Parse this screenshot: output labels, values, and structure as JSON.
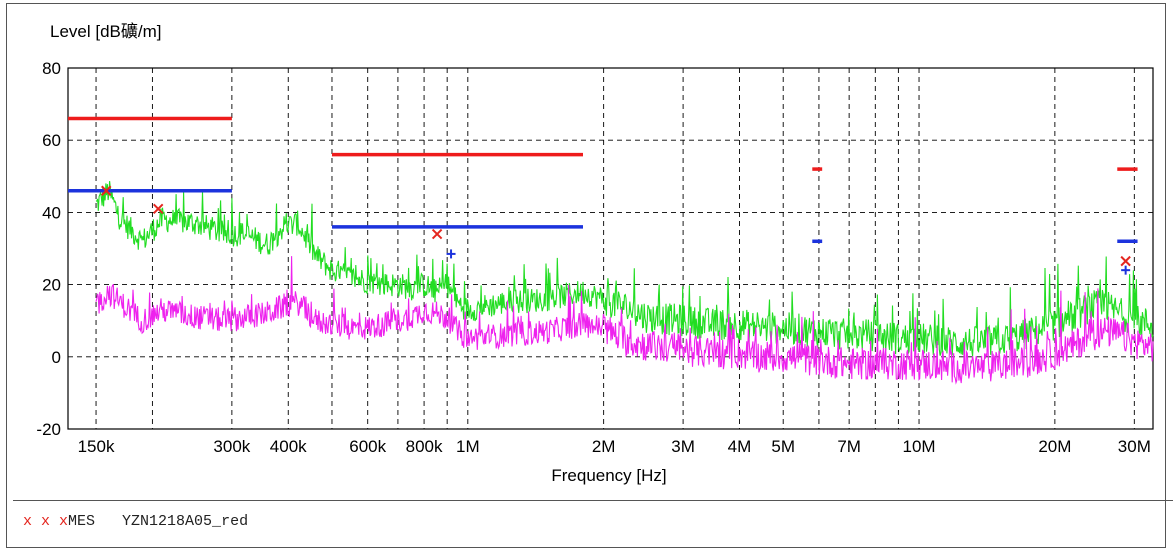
{
  "chart_data": {
    "type": "line",
    "ylabel": "Level [dB礦/m]",
    "xlabel": "Frequency [Hz]",
    "x_scale": "log",
    "xlim": [
      130000,
      33000000
    ],
    "ylim": [
      -20,
      80
    ],
    "y_ticks": [
      80,
      60,
      40,
      20,
      0,
      -20
    ],
    "x_ticks": [
      {
        "value": 150000,
        "label": "150k"
      },
      {
        "value": 300000,
        "label": "300k"
      },
      {
        "value": 400000,
        "label": "400k"
      },
      {
        "value": 600000,
        "label": "600k"
      },
      {
        "value": 800000,
        "label": "800k"
      },
      {
        "value": 1000000,
        "label": "1M"
      },
      {
        "value": 2000000,
        "label": "2M"
      },
      {
        "value": 3000000,
        "label": "3M"
      },
      {
        "value": 4000000,
        "label": "4M"
      },
      {
        "value": 5000000,
        "label": "5M"
      },
      {
        "value": 7000000,
        "label": "7M"
      },
      {
        "value": 10000000,
        "label": "10M"
      },
      {
        "value": 20000000,
        "label": "20M"
      },
      {
        "value": 30000000,
        "label": "30M"
      }
    ],
    "x_gridlines": [
      150000,
      200000,
      300000,
      400000,
      500000,
      600000,
      700000,
      800000,
      900000,
      1000000,
      2000000,
      3000000,
      4000000,
      5000000,
      6000000,
      7000000,
      8000000,
      9000000,
      10000000,
      20000000,
      30000000
    ],
    "grid": true,
    "series": [
      {
        "color": "#22dd22",
        "points": [
          [
            150000,
            42
          ],
          [
            160000,
            46
          ],
          [
            170000,
            38
          ],
          [
            190000,
            32
          ],
          [
            210000,
            38
          ],
          [
            250000,
            37
          ],
          [
            290000,
            34
          ],
          [
            320000,
            34
          ],
          [
            360000,
            31
          ],
          [
            390000,
            36
          ],
          [
            420000,
            37
          ],
          [
            460000,
            28
          ],
          [
            500000,
            24
          ],
          [
            550000,
            22
          ],
          [
            600000,
            21
          ],
          [
            650000,
            20
          ],
          [
            700000,
            20
          ],
          [
            750000,
            19
          ],
          [
            800000,
            20
          ],
          [
            850000,
            18
          ],
          [
            900000,
            20
          ],
          [
            950000,
            15
          ],
          [
            1000000,
            13
          ],
          [
            1200000,
            15
          ],
          [
            1500000,
            16
          ],
          [
            1800000,
            18
          ],
          [
            2000000,
            16
          ],
          [
            2200000,
            14
          ],
          [
            2500000,
            11
          ],
          [
            3000000,
            10
          ],
          [
            3500000,
            9
          ],
          [
            4000000,
            9
          ],
          [
            4500000,
            8
          ],
          [
            5000000,
            8
          ],
          [
            6000000,
            7
          ],
          [
            7000000,
            6
          ],
          [
            8000000,
            6
          ],
          [
            9000000,
            5
          ],
          [
            10000000,
            5
          ],
          [
            12000000,
            4
          ],
          [
            14000000,
            4
          ],
          [
            16000000,
            5
          ],
          [
            18000000,
            7
          ],
          [
            20000000,
            9
          ],
          [
            22000000,
            11
          ],
          [
            24000000,
            14
          ],
          [
            26000000,
            14
          ],
          [
            28000000,
            12
          ],
          [
            30000000,
            10
          ],
          [
            33000000,
            9
          ]
        ]
      },
      {
        "color": "#ee22ee",
        "points": [
          [
            150000,
            14
          ],
          [
            160000,
            18
          ],
          [
            170000,
            15
          ],
          [
            190000,
            10
          ],
          [
            210000,
            13
          ],
          [
            250000,
            11
          ],
          [
            290000,
            10
          ],
          [
            320000,
            11
          ],
          [
            360000,
            12
          ],
          [
            390000,
            14
          ],
          [
            420000,
            15
          ],
          [
            460000,
            10
          ],
          [
            500000,
            9
          ],
          [
            550000,
            8
          ],
          [
            600000,
            8
          ],
          [
            650000,
            9
          ],
          [
            700000,
            10
          ],
          [
            750000,
            11
          ],
          [
            800000,
            13
          ],
          [
            850000,
            12
          ],
          [
            900000,
            11
          ],
          [
            950000,
            7
          ],
          [
            1000000,
            5
          ],
          [
            1200000,
            6
          ],
          [
            1500000,
            7
          ],
          [
            1800000,
            9
          ],
          [
            2000000,
            8
          ],
          [
            2200000,
            5
          ],
          [
            2500000,
            3
          ],
          [
            3000000,
            2
          ],
          [
            3500000,
            1
          ],
          [
            4000000,
            1
          ],
          [
            4500000,
            0
          ],
          [
            5000000,
            0
          ],
          [
            6000000,
            -1
          ],
          [
            7000000,
            -2
          ],
          [
            8000000,
            -2
          ],
          [
            9000000,
            -2
          ],
          [
            10000000,
            -2
          ],
          [
            12000000,
            -3
          ],
          [
            14000000,
            -3
          ],
          [
            16000000,
            -2
          ],
          [
            18000000,
            -1
          ],
          [
            20000000,
            1
          ],
          [
            22000000,
            3
          ],
          [
            24000000,
            6
          ],
          [
            26000000,
            7
          ],
          [
            28000000,
            6
          ],
          [
            30000000,
            4
          ],
          [
            33000000,
            3
          ]
        ]
      }
    ],
    "limit_lines": [
      {
        "color": "#ee1c1c",
        "segments": [
          [
            [
              130000,
              66
            ],
            [
              300000,
              66
            ]
          ],
          [
            [
              500000,
              56
            ],
            [
              1800000,
              56
            ]
          ],
          [
            [
              5800000,
              52
            ],
            [
              6100000,
              52
            ]
          ],
          [
            [
              27500000,
              52
            ],
            [
              30500000,
              52
            ]
          ]
        ]
      },
      {
        "color": "#1c33dd",
        "segments": [
          [
            [
              130000,
              46
            ],
            [
              300000,
              46
            ]
          ],
          [
            [
              500000,
              36
            ],
            [
              1800000,
              36
            ]
          ],
          [
            [
              5800000,
              32
            ],
            [
              6100000,
              32
            ]
          ],
          [
            [
              27500000,
              32
            ],
            [
              30500000,
              32
            ]
          ]
        ]
      }
    ],
    "markers": [
      {
        "symbol": "x",
        "color": "#e4261f",
        "x": 158000,
        "y": 46
      },
      {
        "symbol": "x",
        "color": "#e4261f",
        "x": 206000,
        "y": 41
      },
      {
        "symbol": "x",
        "color": "#e4261f",
        "x": 855000,
        "y": 34
      },
      {
        "symbol": "+",
        "color": "#1c33dd",
        "x": 918000,
        "y": 28.5
      },
      {
        "symbol": "x",
        "color": "#e4261f",
        "x": 28700000,
        "y": 26.5
      },
      {
        "symbol": "+",
        "color": "#1c33dd",
        "x": 28700000,
        "y": 24
      }
    ]
  },
  "legend": {
    "marks": "x x x",
    "label": "MES",
    "name": "YZN1218A05_red"
  }
}
